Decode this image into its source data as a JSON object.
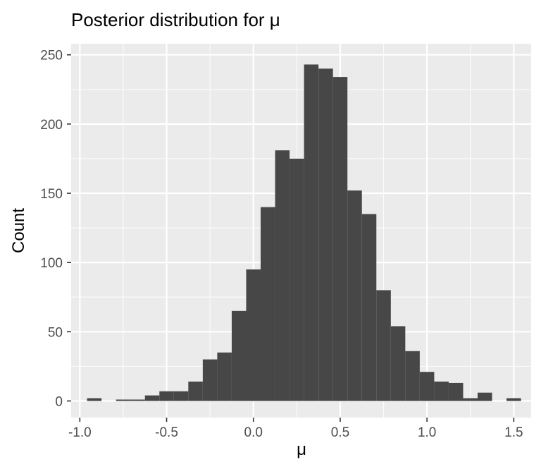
{
  "chart_data": {
    "type": "bar",
    "title": "Posterior distribution for  μ",
    "xlabel": "μ",
    "ylabel": "Count",
    "xlim": [
      -1.05,
      1.6
    ],
    "ylim": [
      -12,
      258
    ],
    "x_ticks": [
      -1.0,
      -0.5,
      0.0,
      0.5,
      1.0,
      1.5
    ],
    "x_tick_labels": [
      "-1.0",
      "-0.5",
      "0.0",
      "0.5",
      "1.0",
      "1.5"
    ],
    "y_ticks": [
      0,
      50,
      100,
      150,
      200,
      250
    ],
    "y_tick_labels": [
      "0",
      "50",
      "100",
      "150",
      "200",
      "250"
    ],
    "grid": true,
    "bin_width": 0.0833,
    "series": [
      {
        "bins": [
          {
            "x": -0.9167,
            "count": 2
          },
          {
            "x": -0.8333,
            "count": 0
          },
          {
            "x": -0.75,
            "count": 1
          },
          {
            "x": -0.6667,
            "count": 1
          },
          {
            "x": -0.5833,
            "count": 4
          },
          {
            "x": -0.5,
            "count": 7
          },
          {
            "x": -0.4167,
            "count": 7
          },
          {
            "x": -0.3333,
            "count": 14
          },
          {
            "x": -0.25,
            "count": 30
          },
          {
            "x": -0.1667,
            "count": 35
          },
          {
            "x": -0.0833,
            "count": 65
          },
          {
            "x": 0.0,
            "count": 95
          },
          {
            "x": 0.0833,
            "count": 140
          },
          {
            "x": 0.1667,
            "count": 181
          },
          {
            "x": 0.25,
            "count": 175
          },
          {
            "x": 0.3333,
            "count": 243
          },
          {
            "x": 0.4167,
            "count": 240
          },
          {
            "x": 0.5,
            "count": 234
          },
          {
            "x": 0.5833,
            "count": 152
          },
          {
            "x": 0.6667,
            "count": 135
          },
          {
            "x": 0.75,
            "count": 80
          },
          {
            "x": 0.8333,
            "count": 54
          },
          {
            "x": 0.9167,
            "count": 36
          },
          {
            "x": 1.0,
            "count": 21
          },
          {
            "x": 1.0833,
            "count": 14
          },
          {
            "x": 1.1667,
            "count": 13
          },
          {
            "x": 1.25,
            "count": 2
          },
          {
            "x": 1.3333,
            "count": 6
          },
          {
            "x": 1.4167,
            "count": 0
          },
          {
            "x": 1.5,
            "count": 2
          }
        ]
      }
    ]
  },
  "colors": {
    "panel_background": "#ebebeb",
    "bar_fill": "#474747",
    "grid": "#ffffff"
  }
}
